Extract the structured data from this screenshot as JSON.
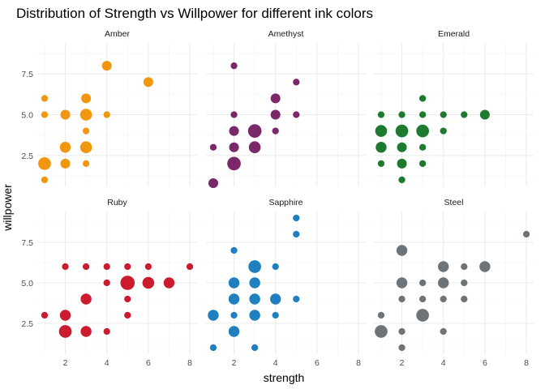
{
  "chart_data": {
    "type": "scatter",
    "title": "Distribution of Strength vs Willpower for different ink colors",
    "xlabel": "strength",
    "ylabel": "willpower",
    "xlim": [
      0.65,
      8.35
    ],
    "ylim": [
      0.6,
      9.4
    ],
    "xticks": [
      2,
      4,
      6,
      8
    ],
    "yticks": [
      2.5,
      5.0,
      7.5
    ],
    "ytick_labels": [
      "2.5",
      "5.0",
      "7.5"
    ],
    "grid": true,
    "size_encoding": "count",
    "panels": [
      {
        "name": "Amber",
        "color": "#f0960f",
        "points": [
          {
            "x": 1,
            "y": 1,
            "n": 1
          },
          {
            "x": 1,
            "y": 2,
            "n": 6
          },
          {
            "x": 1,
            "y": 5,
            "n": 1
          },
          {
            "x": 1,
            "y": 6,
            "n": 1
          },
          {
            "x": 2,
            "y": 2,
            "n": 3
          },
          {
            "x": 2,
            "y": 3,
            "n": 4
          },
          {
            "x": 2,
            "y": 5,
            "n": 3
          },
          {
            "x": 3,
            "y": 2,
            "n": 1
          },
          {
            "x": 3,
            "y": 3,
            "n": 5
          },
          {
            "x": 3,
            "y": 4,
            "n": 1
          },
          {
            "x": 3,
            "y": 5,
            "n": 5
          },
          {
            "x": 3,
            "y": 6,
            "n": 3
          },
          {
            "x": 4,
            "y": 5,
            "n": 1
          },
          {
            "x": 4,
            "y": 8,
            "n": 3
          },
          {
            "x": 6,
            "y": 7,
            "n": 3
          }
        ]
      },
      {
        "name": "Amethyst",
        "color": "#7a2869",
        "points": [
          {
            "x": 1,
            "y": 0.8,
            "n": 3
          },
          {
            "x": 1,
            "y": 3,
            "n": 1
          },
          {
            "x": 2,
            "y": 2,
            "n": 7
          },
          {
            "x": 2,
            "y": 3,
            "n": 3
          },
          {
            "x": 2,
            "y": 4,
            "n": 3
          },
          {
            "x": 2,
            "y": 5,
            "n": 1
          },
          {
            "x": 2,
            "y": 8,
            "n": 1
          },
          {
            "x": 3,
            "y": 3,
            "n": 5
          },
          {
            "x": 3,
            "y": 4,
            "n": 7
          },
          {
            "x": 4,
            "y": 4,
            "n": 1
          },
          {
            "x": 4,
            "y": 5,
            "n": 3
          },
          {
            "x": 4,
            "y": 6,
            "n": 3
          },
          {
            "x": 5,
            "y": 5,
            "n": 1
          },
          {
            "x": 5,
            "y": 7,
            "n": 1
          }
        ]
      },
      {
        "name": "Emerald",
        "color": "#1e7a2e",
        "points": [
          {
            "x": 1,
            "y": 2,
            "n": 1
          },
          {
            "x": 1,
            "y": 3,
            "n": 4
          },
          {
            "x": 1,
            "y": 4,
            "n": 5
          },
          {
            "x": 1,
            "y": 5,
            "n": 1
          },
          {
            "x": 2,
            "y": 1,
            "n": 1
          },
          {
            "x": 2,
            "y": 2,
            "n": 3
          },
          {
            "x": 2,
            "y": 3,
            "n": 3
          },
          {
            "x": 2,
            "y": 4,
            "n": 6
          },
          {
            "x": 2,
            "y": 5,
            "n": 1
          },
          {
            "x": 3,
            "y": 2,
            "n": 1
          },
          {
            "x": 3,
            "y": 3,
            "n": 1
          },
          {
            "x": 3,
            "y": 4,
            "n": 6
          },
          {
            "x": 3,
            "y": 5,
            "n": 1
          },
          {
            "x": 3,
            "y": 6,
            "n": 1
          },
          {
            "x": 4,
            "y": 4,
            "n": 1
          },
          {
            "x": 4,
            "y": 5,
            "n": 1
          },
          {
            "x": 5,
            "y": 5,
            "n": 1
          },
          {
            "x": 6,
            "y": 5,
            "n": 3
          }
        ]
      },
      {
        "name": "Ruby",
        "color": "#cc1a2e",
        "points": [
          {
            "x": 1,
            "y": 3,
            "n": 1
          },
          {
            "x": 2,
            "y": 2,
            "n": 6
          },
          {
            "x": 2,
            "y": 3,
            "n": 4
          },
          {
            "x": 2,
            "y": 6,
            "n": 1
          },
          {
            "x": 3,
            "y": 2,
            "n": 4
          },
          {
            "x": 3,
            "y": 4,
            "n": 4
          },
          {
            "x": 3,
            "y": 6,
            "n": 1
          },
          {
            "x": 4,
            "y": 2,
            "n": 1
          },
          {
            "x": 4,
            "y": 5,
            "n": 1
          },
          {
            "x": 4,
            "y": 6,
            "n": 1
          },
          {
            "x": 5,
            "y": 3,
            "n": 1
          },
          {
            "x": 5,
            "y": 4,
            "n": 1
          },
          {
            "x": 5,
            "y": 5,
            "n": 8
          },
          {
            "x": 5,
            "y": 6,
            "n": 1
          },
          {
            "x": 6,
            "y": 5,
            "n": 5
          },
          {
            "x": 6,
            "y": 6,
            "n": 1
          },
          {
            "x": 7,
            "y": 5,
            "n": 4
          },
          {
            "x": 8,
            "y": 6,
            "n": 1
          }
        ]
      },
      {
        "name": "Sapphire",
        "color": "#1f7fbf",
        "points": [
          {
            "x": 1,
            "y": 1,
            "n": 1
          },
          {
            "x": 1,
            "y": 3,
            "n": 4
          },
          {
            "x": 2,
            "y": 2,
            "n": 4
          },
          {
            "x": 2,
            "y": 3,
            "n": 1
          },
          {
            "x": 2,
            "y": 4,
            "n": 4
          },
          {
            "x": 2,
            "y": 5,
            "n": 4
          },
          {
            "x": 2,
            "y": 7,
            "n": 1
          },
          {
            "x": 3,
            "y": 1,
            "n": 1
          },
          {
            "x": 3,
            "y": 3,
            "n": 4
          },
          {
            "x": 3,
            "y": 4,
            "n": 4
          },
          {
            "x": 3,
            "y": 5,
            "n": 4
          },
          {
            "x": 3,
            "y": 6,
            "n": 6
          },
          {
            "x": 4,
            "y": 3,
            "n": 1
          },
          {
            "x": 4,
            "y": 4,
            "n": 4
          },
          {
            "x": 4,
            "y": 6,
            "n": 1
          },
          {
            "x": 5,
            "y": 4,
            "n": 1
          },
          {
            "x": 5,
            "y": 8,
            "n": 1
          },
          {
            "x": 5,
            "y": 9,
            "n": 1
          }
        ]
      },
      {
        "name": "Steel",
        "color": "#6e7378",
        "points": [
          {
            "x": 1,
            "y": 2,
            "n": 6
          },
          {
            "x": 1,
            "y": 3,
            "n": 1
          },
          {
            "x": 2,
            "y": 1,
            "n": 1
          },
          {
            "x": 2,
            "y": 2,
            "n": 1
          },
          {
            "x": 2,
            "y": 4,
            "n": 1
          },
          {
            "x": 2,
            "y": 5,
            "n": 4
          },
          {
            "x": 2,
            "y": 7,
            "n": 4
          },
          {
            "x": 3,
            "y": 3,
            "n": 6
          },
          {
            "x": 3,
            "y": 4,
            "n": 1
          },
          {
            "x": 3,
            "y": 5,
            "n": 1
          },
          {
            "x": 4,
            "y": 2,
            "n": 1
          },
          {
            "x": 4,
            "y": 4,
            "n": 1
          },
          {
            "x": 4,
            "y": 5,
            "n": 4
          },
          {
            "x": 4,
            "y": 6,
            "n": 4
          },
          {
            "x": 5,
            "y": 4,
            "n": 1
          },
          {
            "x": 5,
            "y": 5,
            "n": 1
          },
          {
            "x": 5,
            "y": 6,
            "n": 1
          },
          {
            "x": 6,
            "y": 6,
            "n": 4
          },
          {
            "x": 8,
            "y": 8,
            "n": 1
          }
        ]
      }
    ]
  }
}
